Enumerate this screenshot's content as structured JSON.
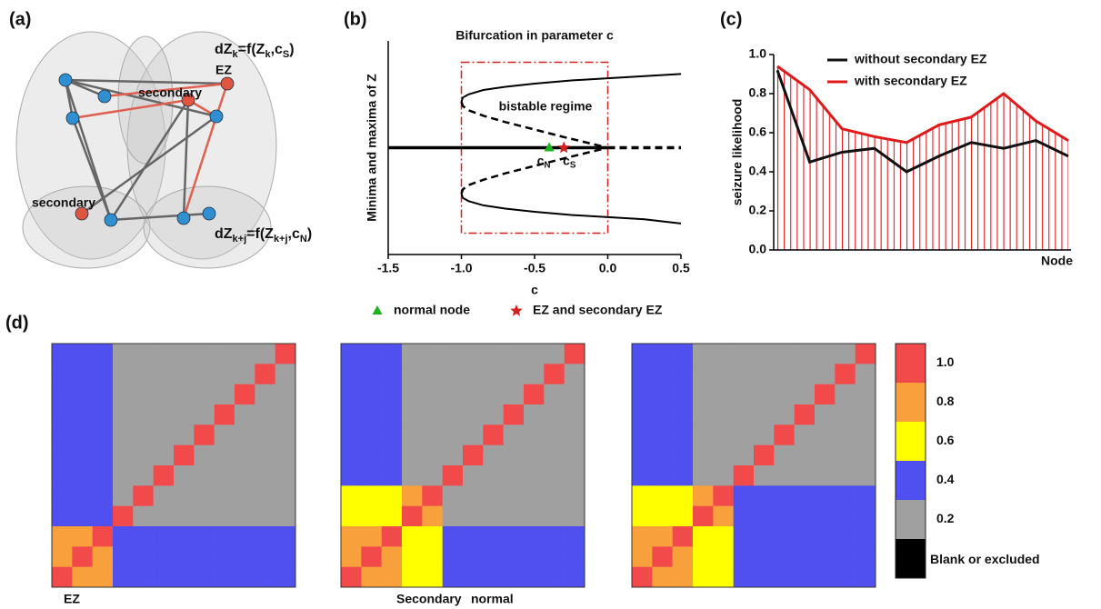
{
  "panel_labels": [
    "(a)",
    "(b)",
    "(c)",
    "(d)"
  ],
  "diagram": {
    "equation_top": [
      "dZ",
      "k",
      "=f(Z",
      "k",
      ",c",
      "S",
      ")"
    ],
    "ez_label": "EZ",
    "secondary_labels": [
      "secondary",
      "secondary"
    ],
    "equation_bottom": [
      "dZ",
      "k+j",
      "=f(Z",
      "k+j",
      ",c",
      "N",
      ")"
    ]
  },
  "chart_data": [
    {
      "type": "line",
      "title": "Bifurcation in parameter c",
      "x_label": "c",
      "y_label": "Minima and maxima of Z",
      "xlim": [
        -1.5,
        0.5
      ],
      "ylim": [
        -1,
        1
      ],
      "xticks": [
        -1.5,
        {
          "value": -1,
          "label": "-1.0"
        },
        -0.5,
        {
          "value": 0,
          "label": "0.0"
        },
        0.5
      ],
      "highlight": {
        "x": [
          -1,
          0
        ],
        "y": [
          -0.8,
          0.8
        ],
        "color": "#d62020"
      },
      "annotation": "bistable regime",
      "series": [
        {
          "color": "#000",
          "dashed": false,
          "width": 2,
          "x": [
            -1,
            -0.99,
            -0.95,
            -0.85,
            -0.7,
            -0.5,
            -0.25,
            0,
            0.25,
            0.5
          ],
          "values": [
            0.43,
            0.47,
            0.5,
            0.54,
            0.57,
            0.6,
            0.63,
            0.65,
            0.67,
            0.69
          ]
        },
        {
          "color": "#000",
          "dashed": true,
          "width": 2.5,
          "x": [
            -1,
            -0.99,
            -0.95,
            -0.85,
            -0.7,
            -0.5,
            -0.3,
            -0.15,
            0
          ],
          "values": [
            0.43,
            0.39,
            0.35,
            0.3,
            0.24,
            0.17,
            0.1,
            0.05,
            0
          ]
        },
        {
          "color": "#000",
          "dashed": true,
          "width": 2.5,
          "x": [
            -1,
            -0.99,
            -0.95,
            -0.85,
            -0.7,
            -0.5,
            -0.3,
            -0.15,
            0
          ],
          "values": [
            -0.43,
            -0.39,
            -0.35,
            -0.3,
            -0.24,
            -0.17,
            -0.1,
            -0.05,
            0
          ]
        },
        {
          "color": "#000",
          "dashed": false,
          "width": 2,
          "x": [
            -1,
            -0.99,
            -0.95,
            -0.85,
            -0.7,
            -0.5,
            -0.25,
            0,
            0.25,
            0.5
          ],
          "values": [
            -0.43,
            -0.47,
            -0.5,
            -0.54,
            -0.57,
            -0.6,
            -0.63,
            -0.65,
            -0.67,
            -0.71
          ]
        },
        {
          "color": "#000",
          "dashed": false,
          "width": 3.5,
          "x": [
            -1.5,
            0
          ],
          "values": [
            0,
            0
          ]
        },
        {
          "color": "#000",
          "dashed": true,
          "width": 3.5,
          "x": [
            0,
            0.5
          ],
          "values": [
            0,
            0
          ]
        }
      ],
      "points": [
        {
          "x": -0.4,
          "y": 0,
          "marker": "triangle",
          "color": "#1db31d",
          "label": "c",
          "sub": "N",
          "legend": "normal node"
        },
        {
          "x": -0.3,
          "y": 0,
          "marker": "star",
          "color": "#d62020",
          "label": "c",
          "sub": "S",
          "legend": "EZ and  secondary EZ"
        }
      ]
    },
    {
      "type": "line",
      "y_label": "seizure likelihood",
      "x_label": "Node",
      "categories": [
        null,
        null,
        null,
        null,
        null,
        null,
        null,
        null,
        null,
        null
      ],
      "ylim": [
        0,
        1
      ],
      "yticks": [
        {
          "value": 0,
          "label": "0.0"
        },
        0.2,
        0.4,
        0.6,
        0.8,
        {
          "value": 1,
          "label": "1.0"
        }
      ],
      "series": [
        {
          "name": "without secondary EZ",
          "color": "#111",
          "values": [
            0.92,
            0.45,
            0.5,
            0.52,
            0.4,
            0.48,
            0.55,
            0.52,
            0.56,
            0.48
          ]
        },
        {
          "name": "with secondary EZ",
          "color": "#e01a1a",
          "fill": "hatch",
          "values": [
            0.94,
            0.82,
            0.62,
            0.58,
            0.55,
            0.64,
            0.68,
            0.8,
            0.66,
            0.56
          ]
        }
      ]
    },
    {
      "type": "heatmap",
      "colorbar": {
        "ticks": [
          {
            "value": 1,
            "label": "1.0"
          },
          0.8,
          0.6,
          0.4,
          0.2
        ],
        "colors": [
          "#f24a4a",
          "#f7a03c",
          "#ffff00",
          "#5050f0",
          "#a0a0a0"
        ],
        "blank": {
          "label": "Blank or excluded",
          "color": "#000"
        }
      },
      "matrices": [
        {
          "labels": [
            "EZ"
          ],
          "values": [
            [
              0.4,
              0.4,
              0.4,
              0.2,
              0.2,
              0.2,
              0.2,
              0.2,
              0.2,
              0.2,
              0.2,
              1
            ],
            [
              0.4,
              0.4,
              0.4,
              0.2,
              0.2,
              0.2,
              0.2,
              0.2,
              0.2,
              0.2,
              1,
              0.2
            ],
            [
              0.4,
              0.4,
              0.4,
              0.2,
              0.2,
              0.2,
              0.2,
              0.2,
              0.2,
              1,
              0.2,
              0.2
            ],
            [
              0.4,
              0.4,
              0.4,
              0.2,
              0.2,
              0.2,
              0.2,
              0.2,
              1,
              0.2,
              0.2,
              0.2
            ],
            [
              0.4,
              0.4,
              0.4,
              0.2,
              0.2,
              0.2,
              0.2,
              1,
              0.2,
              0.2,
              0.2,
              0.2
            ],
            [
              0.4,
              0.4,
              0.4,
              0.2,
              0.2,
              0.2,
              1,
              0.2,
              0.2,
              0.2,
              0.2,
              0.2
            ],
            [
              0.4,
              0.4,
              0.4,
              0.2,
              0.2,
              1,
              0.2,
              0.2,
              0.2,
              0.2,
              0.2,
              0.2
            ],
            [
              0.4,
              0.4,
              0.4,
              0.2,
              1,
              0.2,
              0.2,
              0.2,
              0.2,
              0.2,
              0.2,
              0.2
            ],
            [
              0.4,
              0.4,
              0.4,
              1,
              0.2,
              0.2,
              0.2,
              0.2,
              0.2,
              0.2,
              0.2,
              0.2
            ],
            [
              0.8,
              0.8,
              1,
              0.4,
              0.4,
              0.4,
              0.4,
              0.4,
              0.4,
              0.4,
              0.4,
              0.4
            ],
            [
              0.8,
              1,
              0.8,
              0.4,
              0.4,
              0.4,
              0.4,
              0.4,
              0.4,
              0.4,
              0.4,
              0.4
            ],
            [
              1,
              0.8,
              0.8,
              0.4,
              0.4,
              0.4,
              0.4,
              0.4,
              0.4,
              0.4,
              0.4,
              0.4
            ]
          ]
        },
        {
          "labels": [
            "Secondary",
            "normal"
          ],
          "values": [
            [
              0.4,
              0.4,
              0.4,
              0.2,
              0.2,
              0.2,
              0.2,
              0.2,
              0.2,
              0.2,
              0.2,
              1
            ],
            [
              0.4,
              0.4,
              0.4,
              0.2,
              0.2,
              0.2,
              0.2,
              0.2,
              0.2,
              0.2,
              1,
              0.2
            ],
            [
              0.4,
              0.4,
              0.4,
              0.2,
              0.2,
              0.2,
              0.2,
              0.2,
              0.2,
              1,
              0.2,
              0.2
            ],
            [
              0.4,
              0.4,
              0.4,
              0.2,
              0.2,
              0.2,
              0.2,
              0.2,
              1,
              0.2,
              0.2,
              0.2
            ],
            [
              0.4,
              0.4,
              0.4,
              0.2,
              0.2,
              0.2,
              0.2,
              1,
              0.2,
              0.2,
              0.2,
              0.2
            ],
            [
              0.4,
              0.4,
              0.4,
              0.2,
              0.2,
              0.2,
              1,
              0.2,
              0.2,
              0.2,
              0.2,
              0.2
            ],
            [
              0.4,
              0.4,
              0.4,
              0.2,
              0.2,
              1,
              0.2,
              0.2,
              0.2,
              0.2,
              0.2,
              0.2
            ],
            [
              0.6,
              0.6,
              0.6,
              0.8,
              1,
              0.2,
              0.2,
              0.2,
              0.2,
              0.2,
              0.2,
              0.2
            ],
            [
              0.6,
              0.6,
              0.6,
              1,
              0.8,
              0.2,
              0.2,
              0.2,
              0.2,
              0.2,
              0.2,
              0.2
            ],
            [
              0.8,
              0.8,
              1,
              0.6,
              0.6,
              0.4,
              0.4,
              0.4,
              0.4,
              0.4,
              0.4,
              0.4
            ],
            [
              0.8,
              1,
              0.8,
              0.6,
              0.6,
              0.4,
              0.4,
              0.4,
              0.4,
              0.4,
              0.4,
              0.4
            ],
            [
              1,
              0.8,
              0.8,
              0.6,
              0.6,
              0.4,
              0.4,
              0.4,
              0.4,
              0.4,
              0.4,
              0.4
            ]
          ]
        },
        {
          "labels": [],
          "values": [
            [
              0.4,
              0.4,
              0.4,
              0.2,
              0.2,
              0.2,
              0.2,
              0.2,
              0.2,
              0.2,
              0.2,
              1
            ],
            [
              0.4,
              0.4,
              0.4,
              0.2,
              0.2,
              0.2,
              0.2,
              0.2,
              0.2,
              0.2,
              1,
              0.2
            ],
            [
              0.4,
              0.4,
              0.4,
              0.2,
              0.2,
              0.2,
              0.2,
              0.2,
              0.2,
              1,
              0.2,
              0.2
            ],
            [
              0.4,
              0.4,
              0.4,
              0.2,
              0.2,
              0.2,
              0.2,
              0.2,
              1,
              0.2,
              0.2,
              0.2
            ],
            [
              0.4,
              0.4,
              0.4,
              0.2,
              0.2,
              0.2,
              0.2,
              1,
              0.2,
              0.2,
              0.2,
              0.2
            ],
            [
              0.4,
              0.4,
              0.4,
              0.2,
              0.2,
              0.2,
              1,
              0.2,
              0.2,
              0.2,
              0.2,
              0.2
            ],
            [
              0.4,
              0.4,
              0.4,
              0.2,
              0.2,
              1,
              0.2,
              0.2,
              0.2,
              0.2,
              0.2,
              0.2
            ],
            [
              0.6,
              0.6,
              0.6,
              0.8,
              1,
              0.4,
              0.4,
              0.4,
              0.4,
              0.4,
              0.4,
              0.4
            ],
            [
              0.6,
              0.6,
              0.6,
              1,
              0.8,
              0.4,
              0.4,
              0.4,
              0.4,
              0.4,
              0.4,
              0.4
            ],
            [
              0.8,
              0.8,
              1,
              0.6,
              0.6,
              0.4,
              0.4,
              0.4,
              0.4,
              0.4,
              0.4,
              0.4
            ],
            [
              0.8,
              1,
              0.8,
              0.6,
              0.6,
              0.4,
              0.4,
              0.4,
              0.4,
              0.4,
              0.4,
              0.4
            ],
            [
              1,
              0.8,
              0.8,
              0.6,
              0.6,
              0.4,
              0.4,
              0.4,
              0.4,
              0.4,
              0.4,
              0.4
            ]
          ]
        }
      ]
    }
  ]
}
